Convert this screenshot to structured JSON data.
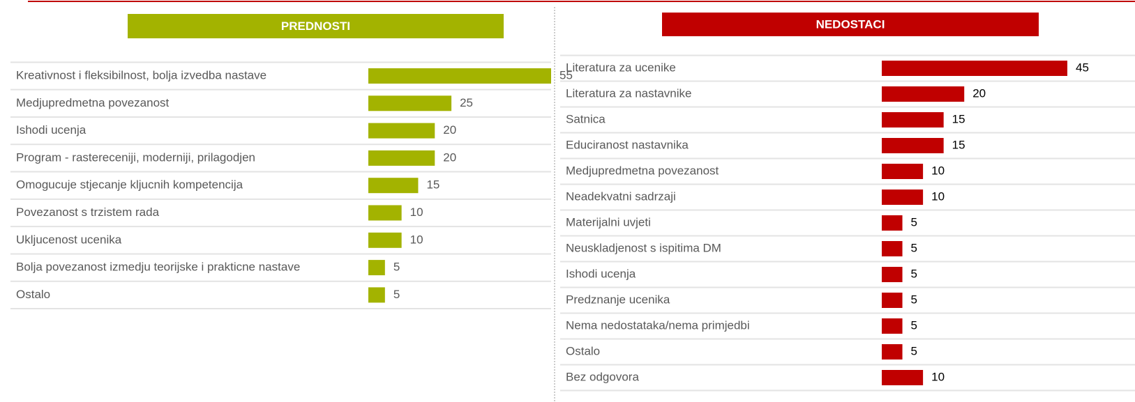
{
  "chart_data": [
    {
      "type": "bar",
      "title": "PREDNOSTI",
      "color": "#a3b300",
      "categories": [
        "Kreativnost i fleksibilnost, bolja izvedba nastave",
        "Medjupredmetna povezanost",
        "Ishodi ucenja",
        "Program - rastereceniji, moderniji, prilagodjen",
        "Omogucuje stjecanje kljucnih kompetencija",
        "Povezanost s trzistem rada",
        "Ukljucenost ucenika",
        "Bolja povezanost izmedju teorijske i prakticne nastave",
        "Ostalo"
      ],
      "values": [
        55,
        25,
        20,
        20,
        15,
        10,
        10,
        5,
        5
      ]
    },
    {
      "type": "bar",
      "title": "NEDOSTACI",
      "color": "#c00000",
      "categories": [
        "Literatura za ucenike",
        "Literatura za nastavnike",
        "Satnica",
        "Educiranost nastavnika",
        "Medjupredmetna povezanost",
        "Neadekvatni sadrzaji",
        "Materijalni uvjeti",
        "Neuskladjenost s ispitima DM",
        "Ishodi ucenja",
        "Predznanje ucenika",
        "Nema nedostataka/nema primjedbi",
        "Ostalo",
        "Bez odgovora"
      ],
      "values": [
        45,
        20,
        15,
        15,
        10,
        10,
        5,
        5,
        5,
        5,
        5,
        5,
        10
      ]
    }
  ]
}
